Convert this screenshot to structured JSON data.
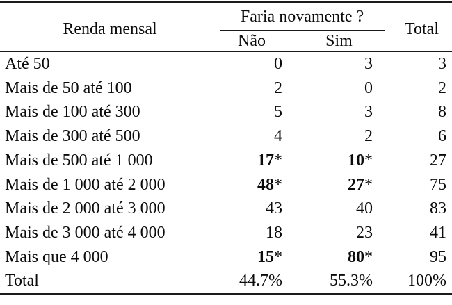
{
  "colors": {
    "background": "#ffffff",
    "text": "#0b0b0b",
    "rule": "#1b1b1b"
  },
  "table": {
    "header": {
      "row_label": "Renda mensal",
      "group_label": "Faria novamente ?",
      "col_nao": "Não",
      "col_sim": "Sim",
      "col_total": "Total"
    },
    "rows": [
      {
        "label": "Até 50",
        "nao": {
          "v": "0"
        },
        "sim": {
          "v": "3"
        },
        "total": "3"
      },
      {
        "label": "Mais de 50 até 100",
        "nao": {
          "v": "2"
        },
        "sim": {
          "v": "0"
        },
        "total": "2"
      },
      {
        "label": "Mais de 100 até 300",
        "nao": {
          "v": "5"
        },
        "sim": {
          "v": "3"
        },
        "total": "8"
      },
      {
        "label": "Mais de 300 até 500",
        "nao": {
          "v": "4"
        },
        "sim": {
          "v": "2"
        },
        "total": "6"
      },
      {
        "label": "Mais de 500 até 1 000",
        "nao": {
          "v": "17",
          "star": "*",
          "bold": true
        },
        "sim": {
          "v": "10",
          "star": "*",
          "bold": true
        },
        "total": "27"
      },
      {
        "label": "Mais de 1 000 até 2 000",
        "nao": {
          "v": "48",
          "star": "*",
          "bold": true
        },
        "sim": {
          "v": "27",
          "star": "*",
          "bold": true
        },
        "total": "75"
      },
      {
        "label": "Mais de 2 000 até 3 000",
        "nao": {
          "v": "43"
        },
        "sim": {
          "v": "40"
        },
        "total": "83"
      },
      {
        "label": "Mais de 3 000 até 4 000",
        "nao": {
          "v": "18"
        },
        "sim": {
          "v": "23"
        },
        "total": "41"
      },
      {
        "label": "Mais que 4 000",
        "nao": {
          "v": "15",
          "star": "*",
          "bold": true
        },
        "sim": {
          "v": "80",
          "star": "*",
          "bold": true
        },
        "total": "95"
      },
      {
        "label": "Total",
        "nao": {
          "v": "44.7%"
        },
        "sim": {
          "v": "55.3%"
        },
        "total": "100%"
      }
    ]
  }
}
